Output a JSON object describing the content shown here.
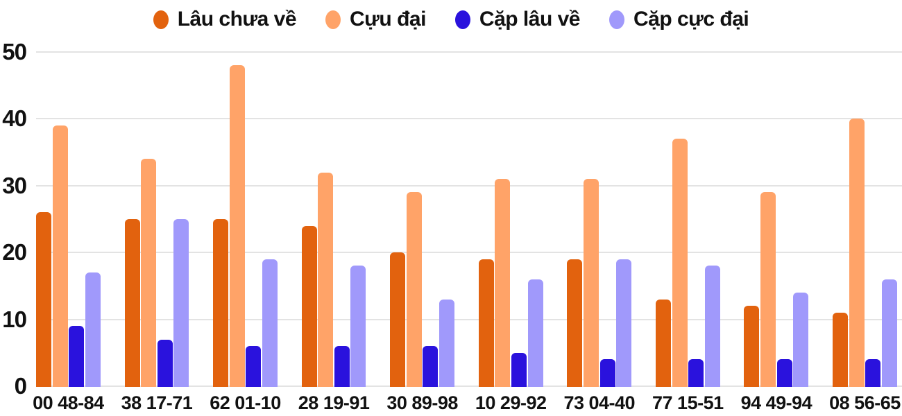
{
  "chart_data": {
    "type": "bar",
    "title": "",
    "xlabel": "",
    "ylabel": "",
    "categories": [
      "00 48-84",
      "38 17-71",
      "62 01-10",
      "28 19-91",
      "30 89-98",
      "10 29-92",
      "73 04-40",
      "77 15-51",
      "94 49-94",
      "08 56-65"
    ],
    "series": [
      {
        "name": "Lâu chưa về",
        "color": "#e2620e",
        "values": [
          26,
          25,
          25,
          24,
          20,
          19,
          19,
          13,
          12,
          11
        ]
      },
      {
        "name": "Cựu đại",
        "color": "#ffa368",
        "values": [
          39,
          34,
          48,
          32,
          29,
          31,
          31,
          37,
          29,
          40
        ]
      },
      {
        "name": "Cặp lâu về",
        "color": "#2a12dd",
        "values": [
          9,
          7,
          6,
          6,
          6,
          5,
          4,
          4,
          4,
          4
        ]
      },
      {
        "name": "Cặp cực đại",
        "color": "#a099fb",
        "values": [
          17,
          25,
          19,
          18,
          13,
          16,
          19,
          18,
          14,
          16
        ]
      }
    ],
    "ylim": [
      0,
      50
    ],
    "yticks": [
      0,
      10,
      20,
      30,
      40,
      50
    ],
    "grid": true,
    "legend_position": "top",
    "gridline_color": "#e3e3e3",
    "text_color": "#111111",
    "background_color": "#ffffff"
  }
}
